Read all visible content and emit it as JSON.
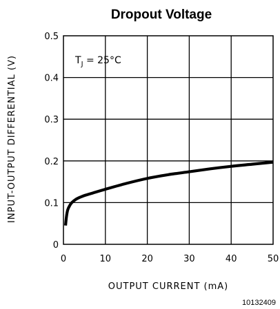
{
  "chart_data": {
    "type": "line",
    "title": "Dropout Voltage",
    "xlabel": "OUTPUT CURRENT (mA)",
    "ylabel": "INPUT-OUTPUT DIFFERENTIAL (V)",
    "xlim": [
      0,
      50
    ],
    "ylim": [
      0,
      0.5
    ],
    "x_ticks": [
      0,
      10,
      20,
      30,
      40,
      50
    ],
    "y_ticks": [
      0,
      0.1,
      0.2,
      0.3,
      0.4,
      0.5
    ],
    "x_tick_labels": [
      "0",
      "10",
      "20",
      "30",
      "40",
      "50"
    ],
    "y_tick_labels": [
      "0",
      "0.1",
      "0.2",
      "0.3",
      "0.4",
      "0.5"
    ],
    "grid": true,
    "annotation": {
      "text": "T",
      "subscript": "J",
      "suffix": " = 25°C"
    },
    "series": [
      {
        "x": [
          0.5,
          0.7,
          1,
          1.5,
          2,
          3,
          4,
          5,
          7,
          10,
          15,
          20,
          25,
          30,
          35,
          40,
          45,
          50
        ],
        "y": [
          0.045,
          0.065,
          0.082,
          0.093,
          0.1,
          0.108,
          0.113,
          0.117,
          0.123,
          0.132,
          0.146,
          0.158,
          0.167,
          0.174,
          0.181,
          0.187,
          0.192,
          0.197
        ]
      }
    ]
  },
  "figure_id": "10132409"
}
